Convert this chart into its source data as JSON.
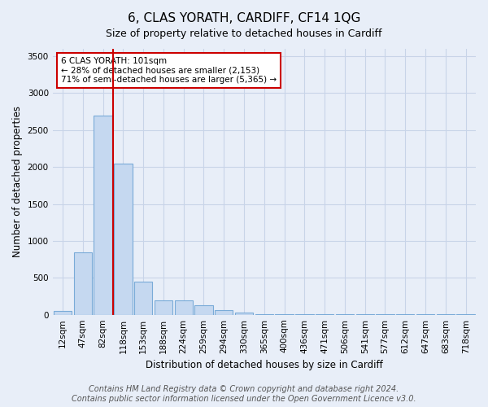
{
  "title": "6, CLAS YORATH, CARDIFF, CF14 1QG",
  "subtitle": "Size of property relative to detached houses in Cardiff",
  "xlabel": "Distribution of detached houses by size in Cardiff",
  "ylabel": "Number of detached properties",
  "categories": [
    "12sqm",
    "47sqm",
    "82sqm",
    "118sqm",
    "153sqm",
    "188sqm",
    "224sqm",
    "259sqm",
    "294sqm",
    "330sqm",
    "365sqm",
    "400sqm",
    "436sqm",
    "471sqm",
    "506sqm",
    "541sqm",
    "577sqm",
    "612sqm",
    "647sqm",
    "683sqm",
    "718sqm"
  ],
  "bar_heights": [
    50,
    850,
    2700,
    2050,
    450,
    200,
    200,
    130,
    60,
    30,
    10,
    5,
    5,
    5,
    5,
    5,
    5,
    5,
    5,
    5,
    5
  ],
  "bar_color": "#c5d8f0",
  "bar_edge_color": "#7aaBd8",
  "ylim": [
    0,
    3600
  ],
  "yticks": [
    0,
    500,
    1000,
    1500,
    2000,
    2500,
    3000,
    3500
  ],
  "property_line_color": "#cc0000",
  "annotation_text": "6 CLAS YORATH: 101sqm\n← 28% of detached houses are smaller (2,153)\n71% of semi-detached houses are larger (5,365) →",
  "annotation_box_color": "#cc0000",
  "footer_text": "Contains HM Land Registry data © Crown copyright and database right 2024.\nContains public sector information licensed under the Open Government Licence v3.0.",
  "background_color": "#e8eef8",
  "grid_color": "#c8d4e8",
  "title_fontsize": 11,
  "axis_fontsize": 8.5,
  "tick_fontsize": 7.5,
  "footer_fontsize": 7
}
